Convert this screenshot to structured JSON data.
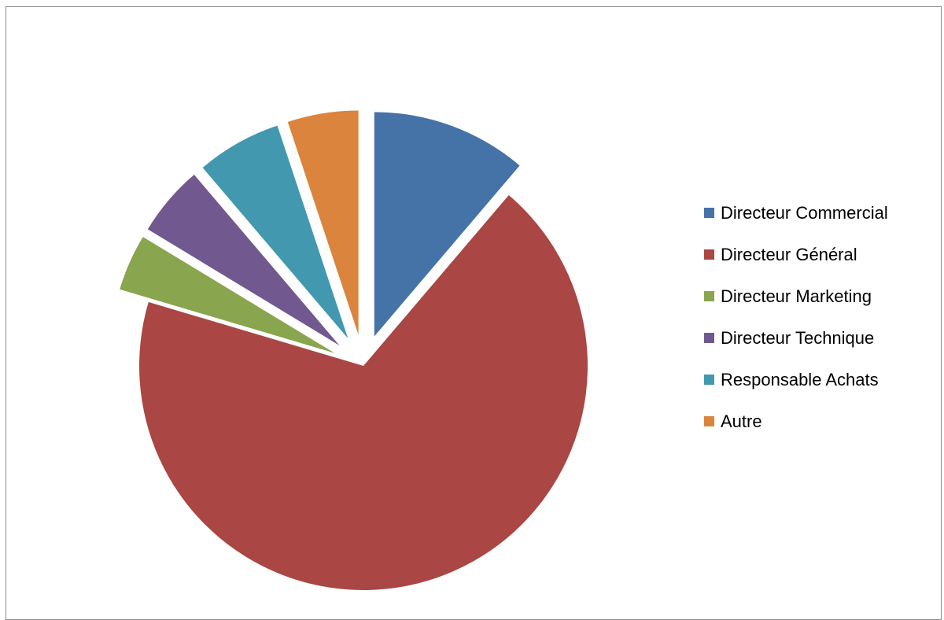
{
  "chart_data": {
    "type": "pie",
    "exploded": true,
    "legend_position": "right",
    "categories": [
      "Directeur Commercial",
      "Directeur Général",
      "Directeur Marketing",
      "Directeur Technique",
      "Responsable Achats",
      "Autre"
    ],
    "values": [
      11,
      67,
      4,
      5,
      6,
      5
    ],
    "colors": [
      "#4572A7",
      "#AA4643",
      "#89A54E",
      "#71588F",
      "#4198AF",
      "#DB843D"
    ]
  },
  "legend": {
    "items": [
      {
        "label": "Directeur Commercial",
        "color": "#4572A7"
      },
      {
        "label": "Directeur Général",
        "color": "#AA4643"
      },
      {
        "label": "Directeur Marketing",
        "color": "#89A54E"
      },
      {
        "label": "Directeur Technique",
        "color": "#71588F"
      },
      {
        "label": "Responsable Achats",
        "color": "#4198AF"
      },
      {
        "label": "Autre",
        "color": "#DB843D"
      }
    ]
  }
}
